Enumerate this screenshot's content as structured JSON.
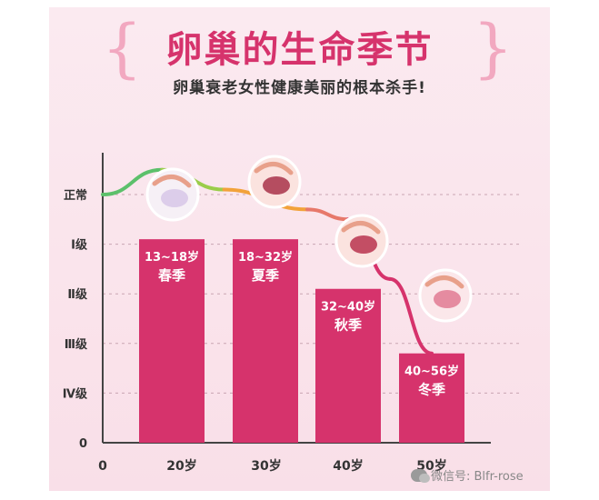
{
  "header": {
    "title": "卵巢的生命季节",
    "subtitle": "卵巢衰老女性健康美丽的根本杀手!"
  },
  "watermark": "微信号: Blfr-rose",
  "colors": {
    "bar": "#d6336c",
    "title": "#d6336c",
    "curve_green": "#5cc06b",
    "curve_orange": "#f2a23a",
    "curve_magenta": "#d6336c"
  },
  "chart_data": {
    "type": "bar",
    "title": "卵巢的生命季节",
    "xlabel": "",
    "ylabel": "",
    "x_ticks": [
      "0",
      "20岁",
      "30岁",
      "40岁",
      "50岁"
    ],
    "y_ticks": [
      "正常",
      "Ⅰ级",
      "Ⅱ级",
      "Ⅲ级",
      "Ⅳ级",
      "0"
    ],
    "ylim": [
      0,
      5
    ],
    "grid": true,
    "categories": [
      "13~18岁 春季",
      "18~32岁 夏季",
      "32~40岁 秋季",
      "40~56岁 冬季"
    ],
    "values": [
      4.1,
      4.1,
      3.1,
      1.8
    ],
    "bar_labels": [
      {
        "age": "13~18岁",
        "season": "春季"
      },
      {
        "age": "18~32岁",
        "season": "夏季"
      },
      {
        "age": "32~40岁",
        "season": "秋季"
      },
      {
        "age": "40~56岁",
        "season": "冬季"
      }
    ],
    "curve": {
      "name": "",
      "points": [
        [
          0,
          5.0
        ],
        [
          15,
          5.5
        ],
        [
          25,
          5.1
        ],
        [
          35,
          4.7
        ],
        [
          40,
          4.5
        ],
        [
          45,
          3.3
        ],
        [
          50,
          1.8
        ]
      ],
      "icons": [
        "ovary-healthy-icon",
        "ovary-stage1-icon",
        "ovary-stage2-icon",
        "ovary-stage3-icon"
      ]
    }
  }
}
